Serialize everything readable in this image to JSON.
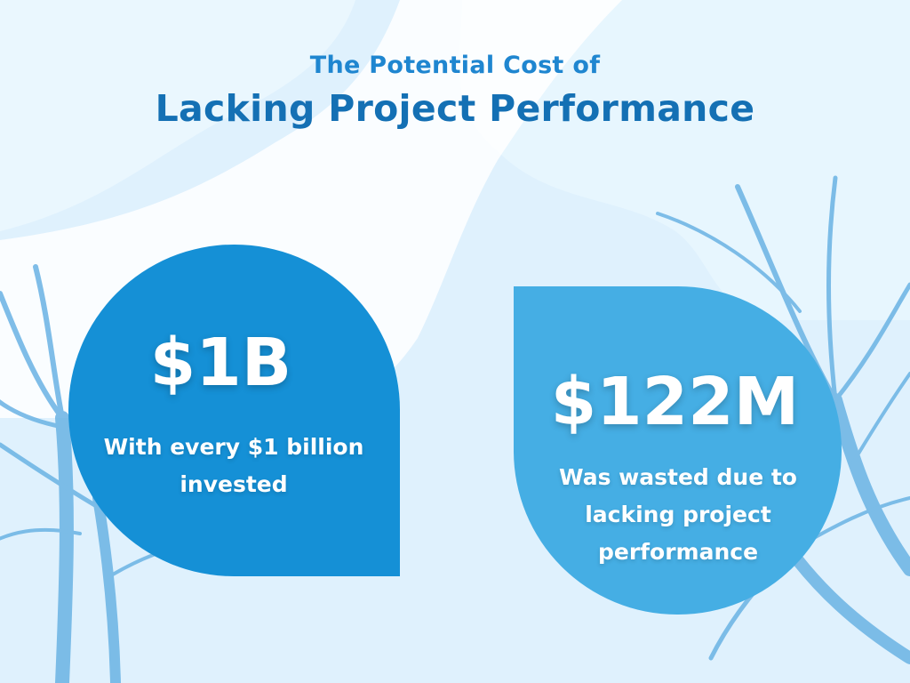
{
  "header": {
    "subtitle": "The Potential Cost of",
    "title": "Lacking Project Performance"
  },
  "cards": [
    {
      "stat": "$1B",
      "desc_lines": [
        "With every $1 billion",
        "invested"
      ],
      "color": "#1590d6"
    },
    {
      "stat": "$122M",
      "desc_lines": [
        "Was wasted due to",
        "lacking project",
        "performance"
      ],
      "color": "#45aee4"
    }
  ],
  "colors": {
    "background": "#dff1fd",
    "title_small": "#1f86d0",
    "title_large": "#1470b4",
    "decor_leaves": "#6ab3e4"
  }
}
